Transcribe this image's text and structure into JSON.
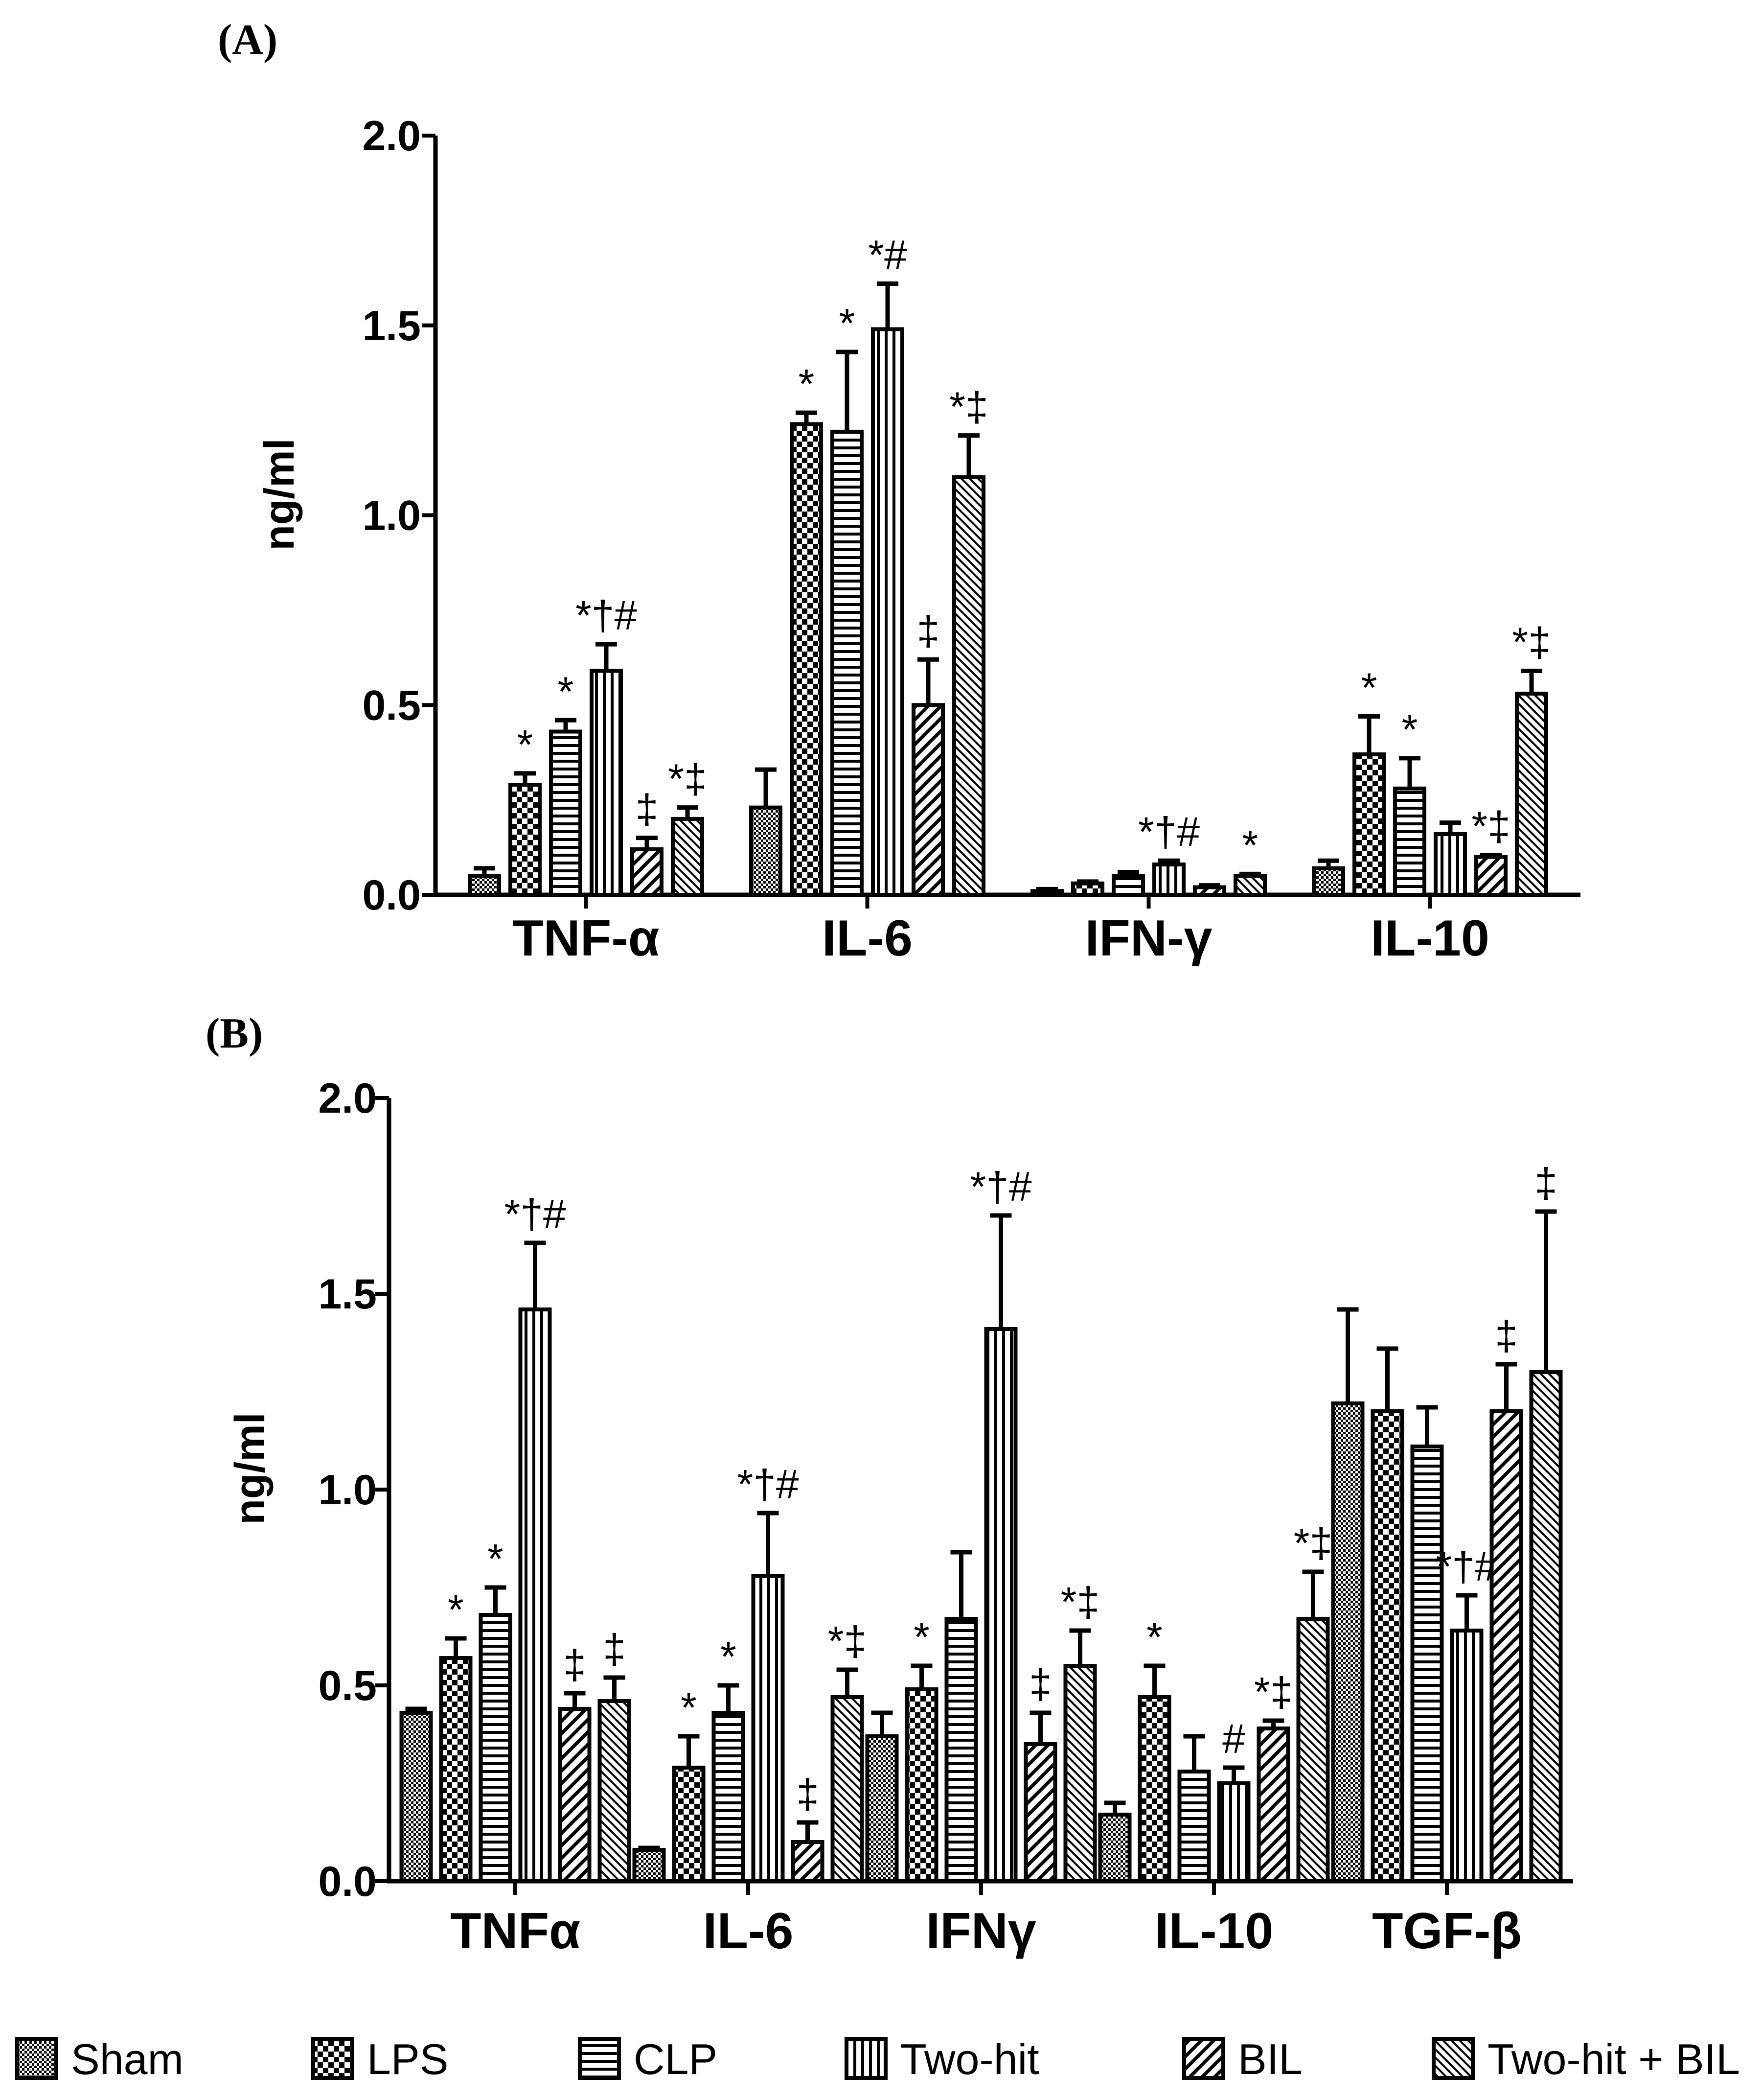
{
  "figure": {
    "series": [
      "Sham",
      "LPS",
      "CLP",
      "Two-hit",
      "BIL",
      "Two-hit + BIL"
    ],
    "pattern_names": [
      "checker-fine",
      "checker-coarse",
      "horizontal-lines",
      "vertical-lines",
      "diagonal-wide",
      "diagonal-dense"
    ],
    "colors": {
      "ink": "#000000",
      "background": "#ffffff"
    }
  },
  "chart_data": [
    {
      "panel": "(A)",
      "type": "bar",
      "ylabel": "ng/ml",
      "ylim": [
        0,
        2.0
      ],
      "yticks": [
        "0.0",
        "0.5",
        "1.0",
        "1.5",
        "2.0"
      ],
      "categories": [
        "TNF-α",
        "IL-6",
        "IFN-γ",
        "IL-10"
      ],
      "series": [
        {
          "name": "Sham",
          "values": [
            0.05,
            0.23,
            0.01,
            0.07
          ],
          "errors": [
            0.02,
            0.1,
            0.005,
            0.02
          ]
        },
        {
          "name": "LPS",
          "values": [
            0.29,
            1.24,
            0.03,
            0.37
          ],
          "errors": [
            0.03,
            0.03,
            0.005,
            0.1
          ]
        },
        {
          "name": "CLP",
          "values": [
            0.43,
            1.22,
            0.05,
            0.28
          ],
          "errors": [
            0.03,
            0.21,
            0.01,
            0.08
          ]
        },
        {
          "name": "Two-hit",
          "values": [
            0.59,
            1.49,
            0.08,
            0.16
          ],
          "errors": [
            0.07,
            0.12,
            0.01,
            0.03
          ]
        },
        {
          "name": "BIL",
          "values": [
            0.12,
            0.5,
            0.02,
            0.1
          ],
          "errors": [
            0.03,
            0.12,
            0.005,
            0.005
          ]
        },
        {
          "name": "Two-hit + BIL",
          "values": [
            0.2,
            1.1,
            0.05,
            0.53
          ],
          "errors": [
            0.03,
            0.11,
            0.005,
            0.06
          ]
        }
      ],
      "annotations": [
        [
          "",
          "*",
          "*",
          "*†#",
          "‡",
          "*‡"
        ],
        [
          "",
          "*",
          "*",
          "*#",
          "‡",
          "*‡"
        ],
        [
          "",
          "",
          "",
          "*†#",
          "",
          "*"
        ],
        [
          "",
          "*",
          "*",
          "",
          "*‡",
          "*‡"
        ]
      ]
    },
    {
      "panel": "(B)",
      "type": "bar",
      "ylabel": "ng/ml",
      "ylim": [
        0,
        2.0
      ],
      "yticks": [
        "0.0",
        "0.5",
        "1.0",
        "1.5",
        "2.0"
      ],
      "categories": [
        "TNFα",
        "IL-6",
        "IFNγ",
        "IL-10",
        "TGF-β"
      ],
      "series": [
        {
          "name": "Sham",
          "values": [
            0.43,
            0.08,
            0.37,
            0.17,
            1.22
          ],
          "errors": [
            0.01,
            0.005,
            0.06,
            0.03,
            0.24
          ]
        },
        {
          "name": "LPS",
          "values": [
            0.57,
            0.29,
            0.49,
            0.47,
            1.2
          ],
          "errors": [
            0.05,
            0.08,
            0.06,
            0.08,
            0.16
          ]
        },
        {
          "name": "CLP",
          "values": [
            0.68,
            0.43,
            0.67,
            0.28,
            1.11
          ],
          "errors": [
            0.07,
            0.07,
            0.17,
            0.09,
            0.1
          ]
        },
        {
          "name": "Two-hit",
          "values": [
            1.46,
            0.78,
            1.41,
            0.25,
            0.64
          ],
          "errors": [
            0.17,
            0.16,
            0.29,
            0.04,
            0.09
          ]
        },
        {
          "name": "BIL",
          "values": [
            0.44,
            0.1,
            0.35,
            0.39,
            1.2
          ],
          "errors": [
            0.04,
            0.05,
            0.08,
            0.02,
            0.12
          ]
        },
        {
          "name": "Two-hit + BIL",
          "values": [
            0.46,
            0.47,
            0.55,
            0.67,
            1.3
          ],
          "errors": [
            0.06,
            0.07,
            0.09,
            0.12,
            0.41
          ]
        }
      ],
      "annotations": [
        [
          "",
          "*",
          "*",
          "*†#",
          "‡",
          "‡"
        ],
        [
          "",
          "*",
          "*",
          "*†#",
          "‡",
          "*‡"
        ],
        [
          "",
          "*",
          "",
          "*†#",
          "‡",
          "*‡"
        ],
        [
          "",
          "*",
          "",
          "#",
          "*‡",
          "*‡"
        ],
        [
          "",
          "",
          "",
          "*†#",
          "‡",
          "‡"
        ]
      ]
    }
  ]
}
